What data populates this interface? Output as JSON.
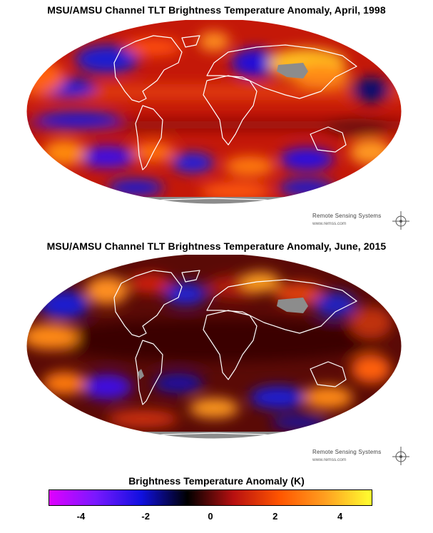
{
  "maps": [
    {
      "title": "MSU/AMSU Channel TLT Brightness Temperature Anomaly, April, 1998",
      "credit_org": "Remote Sensing Systems",
      "credit_url": "www.remss.com"
    },
    {
      "title": "MSU/AMSU Channel TLT Brightness Temperature Anomaly, June, 2015",
      "credit_org": "Remote Sensing Systems",
      "credit_url": "www.remss.com"
    }
  ],
  "colorbar": {
    "title": "Brightness Temperature Anomaly (K)",
    "min": -5,
    "max": 5,
    "tick_labels": [
      "-4",
      "-2",
      "0",
      "2",
      "4"
    ],
    "tick_values": [
      -4,
      -2,
      0,
      2,
      4
    ],
    "colors": [
      "#e000ff",
      "#7a18ff",
      "#1010e0",
      "#000000",
      "#b81010",
      "#ff5500",
      "#ffa020",
      "#ffff30"
    ]
  },
  "colors": {
    "land_outline": "#ffffff",
    "no_data": "#8c8c8c"
  }
}
